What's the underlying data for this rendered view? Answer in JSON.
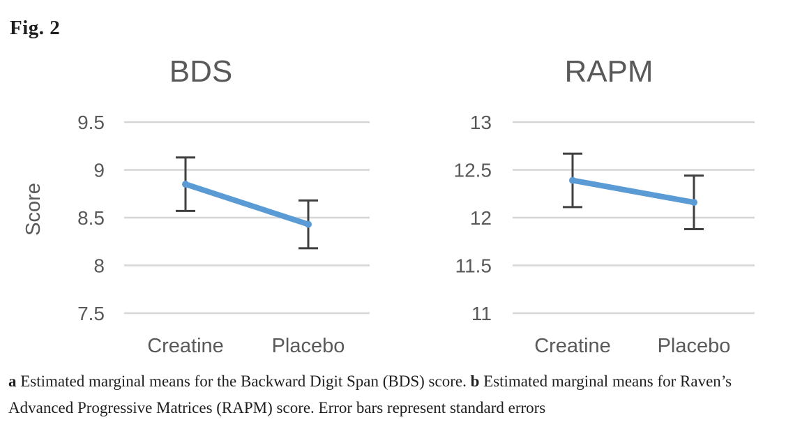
{
  "figure_label": "Fig. 2",
  "caption": {
    "a_label": "a",
    "a_text": " Estimated marginal means for the Backward Digit Span (BDS) score. ",
    "b_label": "b",
    "b_text": " Estimated marginal means for Raven’s Advanced Progressive Matrices (RAPM) score. Error bars represent standard errors"
  },
  "colors": {
    "line": "#5B9BD5",
    "marker": "#5B9BD5",
    "error_bar": "#404040",
    "axis_text": "#595959",
    "gridline": "#D6D6D6",
    "caption_text": "#1f1f1f"
  },
  "chart_data": [
    {
      "type": "line",
      "title": "BDS",
      "xlabel": "",
      "ylabel": "Score",
      "categories": [
        "Creatine",
        "Placebo"
      ],
      "values": [
        8.85,
        8.43
      ],
      "error_bars": [
        [
          8.57,
          9.13
        ],
        [
          8.18,
          8.68
        ]
      ],
      "yticks": [
        7.5,
        8,
        8.5,
        9,
        9.5
      ],
      "ylim": [
        7.25,
        9.75
      ],
      "grid": true,
      "legend": "none"
    },
    {
      "type": "line",
      "title": "RAPM",
      "xlabel": "",
      "ylabel": "",
      "categories": [
        "Creatine",
        "Placebo"
      ],
      "values": [
        12.39,
        12.16
      ],
      "error_bars": [
        [
          12.11,
          12.67
        ],
        [
          11.88,
          12.44
        ]
      ],
      "yticks": [
        11,
        11.5,
        12,
        12.5,
        13
      ],
      "ylim": [
        10.75,
        13.25
      ],
      "grid": true,
      "legend": "none"
    }
  ]
}
